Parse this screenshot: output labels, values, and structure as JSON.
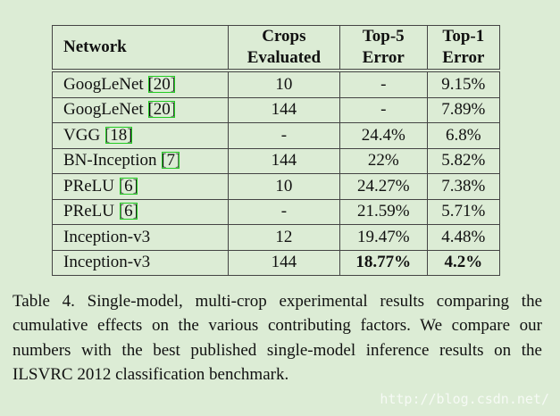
{
  "table": {
    "headers": [
      "Network",
      "Crops\nEvaluated",
      "Top-5\nError",
      "Top-1\nError"
    ],
    "rows": [
      {
        "network": "GoogLeNet",
        "ref": "[20]",
        "crops": "10",
        "top5": "-",
        "top1": "9.15%"
      },
      {
        "network": "GoogLeNet",
        "ref": "[20]",
        "crops": "144",
        "top5": "-",
        "top1": "7.89%"
      },
      {
        "network": "VGG",
        "ref": "[18]",
        "crops": "-",
        "top5": "24.4%",
        "top1": "6.8%"
      },
      {
        "network": "BN-Inception",
        "ref": "[7]",
        "crops": "144",
        "top5": "22%",
        "top1": "5.82%"
      },
      {
        "network": "PReLU",
        "ref": "[6]",
        "crops": "10",
        "top5": "24.27%",
        "top1": "7.38%"
      },
      {
        "network": "PReLU",
        "ref": "[6]",
        "crops": "-",
        "top5": "21.59%",
        "top1": "5.71%"
      },
      {
        "network": "Inception-v3",
        "crops": "12",
        "top5": "19.47%",
        "top1": "4.48%"
      },
      {
        "network": "Inception-v3",
        "crops": "144",
        "top5": "18.77%",
        "top1": "4.2%",
        "bold": true
      }
    ]
  },
  "caption": "Table 4. Single-model, multi-crop experimental results comparing the cumulative effects on the various contributing factors. We compare our numbers with the best published single-model inference results on the ILSVRC 2012 classification benchmark.",
  "watermark": "http://blog.csdn.net/"
}
